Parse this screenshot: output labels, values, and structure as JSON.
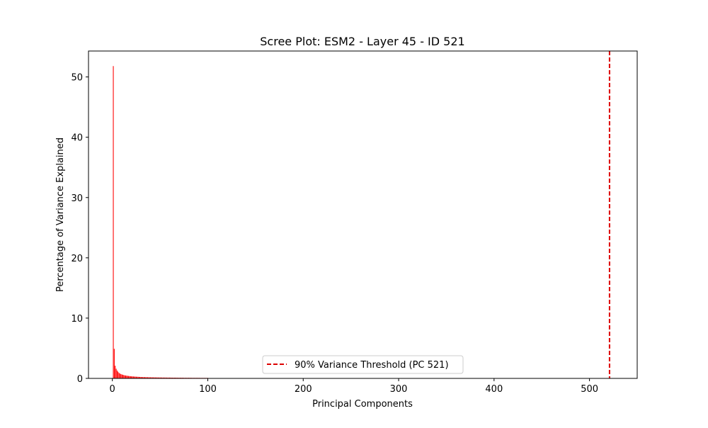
{
  "chart_data": {
    "type": "bar",
    "title": "Scree Plot: ESM2 - Layer 45 - ID 521",
    "xlabel": "Principal Components",
    "ylabel": "Percentage of Variance Explained",
    "xlim": [
      -25,
      550
    ],
    "ylim": [
      0,
      54.3
    ],
    "xticks": [
      0,
      100,
      200,
      300,
      400,
      500
    ],
    "yticks": [
      0,
      10,
      20,
      30,
      40,
      50
    ],
    "grid": false,
    "bar_color": "#ff0000",
    "threshold": {
      "x": 521,
      "color": "#dd0000",
      "style": "dashed",
      "label": "90% Variance Threshold (PC 521)"
    },
    "legend_placement": "lower center",
    "series": [
      {
        "x": [
          1,
          2,
          3,
          4,
          5,
          6,
          7,
          8,
          9,
          10,
          11,
          12,
          13,
          14,
          15,
          16,
          17,
          18,
          19,
          20,
          21,
          22,
          23,
          24,
          25,
          26,
          27,
          28,
          29,
          30,
          31,
          32,
          33,
          34,
          35,
          36,
          37,
          38,
          39,
          40,
          41,
          42,
          43,
          44,
          45,
          46,
          47,
          48,
          49,
          50,
          51,
          52,
          53,
          54,
          55,
          56,
          57,
          58,
          59,
          60,
          61,
          62,
          63,
          64,
          65,
          66,
          67,
          68,
          69,
          70,
          71,
          72,
          73,
          74,
          75,
          76,
          77,
          78,
          79,
          80,
          81,
          82,
          83,
          84,
          85,
          86,
          87,
          88,
          89,
          90,
          91,
          92,
          93,
          94,
          95,
          96,
          97,
          98,
          99,
          100
        ],
        "values": [
          51.8,
          4.9,
          2.1,
          1.6,
          1.3,
          1.1,
          0.9,
          0.8,
          0.7,
          0.65,
          0.6,
          0.55,
          0.5,
          0.48,
          0.45,
          0.42,
          0.4,
          0.38,
          0.36,
          0.34,
          0.33,
          0.32,
          0.3,
          0.29,
          0.28,
          0.27,
          0.26,
          0.25,
          0.24,
          0.23,
          0.22,
          0.22,
          0.21,
          0.21,
          0.2,
          0.2,
          0.19,
          0.19,
          0.18,
          0.18,
          0.18,
          0.17,
          0.17,
          0.17,
          0.16,
          0.16,
          0.16,
          0.15,
          0.15,
          0.15,
          0.15,
          0.14,
          0.14,
          0.14,
          0.14,
          0.14,
          0.13,
          0.13,
          0.13,
          0.13,
          0.13,
          0.12,
          0.12,
          0.12,
          0.12,
          0.12,
          0.12,
          0.11,
          0.11,
          0.11,
          0.11,
          0.11,
          0.11,
          0.11,
          0.1,
          0.1,
          0.1,
          0.1,
          0.1,
          0.1,
          0.1,
          0.1,
          0.09,
          0.09,
          0.09,
          0.09,
          0.09,
          0.09,
          0.09,
          0.09,
          0.09,
          0.08,
          0.08,
          0.08,
          0.08,
          0.08,
          0.08,
          0.08,
          0.08,
          0.08
        ]
      }
    ]
  }
}
